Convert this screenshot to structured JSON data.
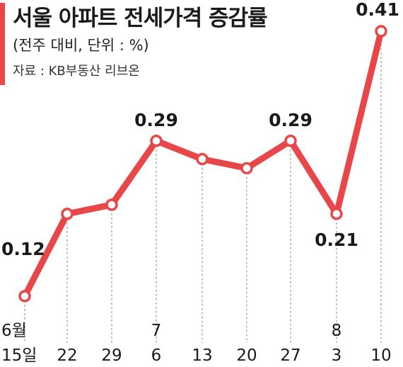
{
  "header": {
    "title": "서울 아파트 전세가격 증감률",
    "subtitle": "(전주 대비, 단위 : %)",
    "source": "자료 : KB부동산 리브온"
  },
  "colors": {
    "line": "#e8474a",
    "accent": "#e8474a",
    "text": "#1a1a1a",
    "guide": "#888888"
  },
  "chart_data": {
    "type": "line",
    "title": "서울 아파트 전세가격 증감률",
    "subtitle": "(전주 대비, 단위 : %)",
    "xlabel": "",
    "ylabel": "",
    "ylim": [
      0.1,
      0.42
    ],
    "grid": false,
    "categories": [
      "6월 15일",
      "22",
      "29",
      "7 6",
      "13",
      "20",
      "27",
      "8 3",
      "10"
    ],
    "tick_labels": [
      {
        "month": "6월",
        "day": "15일"
      },
      {
        "month": "",
        "day": "22"
      },
      {
        "month": "",
        "day": "29"
      },
      {
        "month": "7",
        "day": "6"
      },
      {
        "month": "",
        "day": "13"
      },
      {
        "month": "",
        "day": "20"
      },
      {
        "month": "",
        "day": "27"
      },
      {
        "month": "8",
        "day": "3"
      },
      {
        "month": "",
        "day": "10"
      }
    ],
    "values": [
      0.12,
      0.21,
      0.22,
      0.29,
      0.27,
      0.26,
      0.29,
      0.21,
      0.41
    ],
    "data_labels": [
      {
        "index": 0,
        "text": "0.12"
      },
      {
        "index": 3,
        "text": "0.29"
      },
      {
        "index": 6,
        "text": "0.29"
      },
      {
        "index": 7,
        "text": "0.21"
      },
      {
        "index": 8,
        "text": "0.41"
      }
    ]
  }
}
